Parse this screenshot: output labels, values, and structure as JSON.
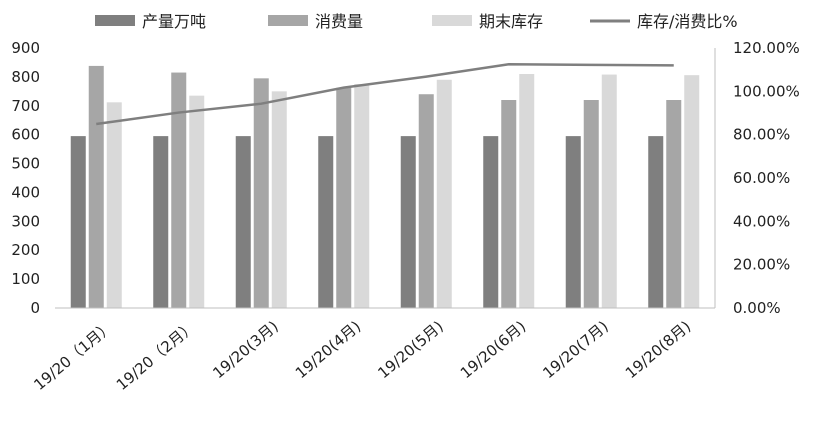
{
  "chart_data": {
    "type": "bar",
    "title": "",
    "categories": [
      "19/20（1月）",
      "19/20（2月）",
      "19/20(3月)",
      "19/20(4月)",
      "19/20(5月)",
      "19/20(6月)",
      "19/20(7月)",
      "19/20(8月)"
    ],
    "series": [
      {
        "name": "产量万吨",
        "type": "bar",
        "axis": "left",
        "color": "#7f7f7f",
        "values": [
          595,
          595,
          595,
          595,
          595,
          595,
          595,
          595
        ]
      },
      {
        "name": "消费量",
        "type": "bar",
        "axis": "left",
        "color": "#a6a6a6",
        "values": [
          838,
          815,
          795,
          762,
          740,
          720,
          720,
          720
        ]
      },
      {
        "name": "期末库存",
        "type": "bar",
        "axis": "left",
        "color": "#d9d9d9",
        "values": [
          712,
          735,
          750,
          775,
          790,
          810,
          808,
          806
        ]
      },
      {
        "name": "库存/消费比%",
        "type": "line",
        "axis": "right",
        "color": "#7f7f7f",
        "values": [
          84.9,
          90.2,
          94.3,
          101.7,
          106.8,
          112.5,
          112.2,
          112.0
        ]
      }
    ],
    "y_left": {
      "min": 0,
      "max": 900,
      "step": 100,
      "tick_labels": [
        "0",
        "100",
        "200",
        "300",
        "400",
        "500",
        "600",
        "700",
        "800",
        "900"
      ]
    },
    "y_right": {
      "min": 0,
      "max": 120,
      "step": 20,
      "tick_labels": [
        "0.00%",
        "20.00%",
        "40.00%",
        "60.00%",
        "80.00%",
        "100.00%",
        "120.00%"
      ]
    },
    "grid": false,
    "legend_position": "top"
  }
}
